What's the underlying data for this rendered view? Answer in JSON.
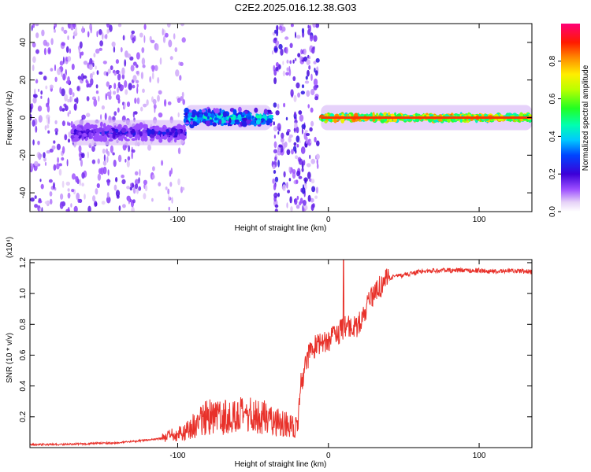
{
  "title": "C2E2.2025.016.12.38.G03",
  "colors": {
    "snr_line": "#e8312a",
    "axis": "#000000"
  },
  "chart_data": [
    {
      "type": "heatmap",
      "xlabel": "Height of straight line (km)",
      "ylabel": "Frequency (Hz)",
      "xlim": [
        -198,
        135
      ],
      "ylim": [
        -50,
        50
      ],
      "x_ticks": [
        -100,
        0,
        100
      ],
      "x_tick_labels": [
        "-100",
        "0",
        "100"
      ],
      "y_ticks": [
        -40,
        -20,
        0,
        20,
        40
      ],
      "y_tick_labels": [
        "-40",
        "-20",
        "0",
        "20",
        "40"
      ],
      "colorbar": {
        "label": "Normalized spectral amplitude",
        "range": [
          0,
          1
        ],
        "ticks": [
          0,
          0.2,
          0.4,
          0.6,
          0.8
        ],
        "tick_labels": [
          "0.0",
          "0.2",
          "0.4",
          "0.6",
          "0.8"
        ]
      },
      "bands": [
        {
          "x_start": -198,
          "x_end": -125,
          "kind": "noise",
          "center_hz": 0,
          "level": 0.15
        },
        {
          "x_start": -125,
          "x_end": -95,
          "kind": "noise",
          "center_hz": 0,
          "level": 0.08
        },
        {
          "x_start": -170,
          "x_end": -95,
          "kind": "signal",
          "center_hz": -8,
          "level": 0.25
        },
        {
          "x_start": -95,
          "x_end": -38,
          "kind": "signal",
          "center_hz": 0,
          "level": 0.45
        },
        {
          "x_start": -37,
          "x_end": -7,
          "kind": "noise",
          "center_hz": 0,
          "level": 0.2
        },
        {
          "x_start": -5,
          "x_end": 135,
          "kind": "signal",
          "center_hz": 0,
          "level": 0.75
        }
      ]
    },
    {
      "type": "line",
      "xlabel": "Height of straight line (km)",
      "ylabel": "SNR (10 * v/v)",
      "y_multiplier": "(x10⁴)",
      "xlim": [
        -198,
        135
      ],
      "ylim": [
        0,
        1.22
      ],
      "x_ticks": [
        -100,
        0,
        100
      ],
      "x_tick_labels": [
        "-100",
        "0",
        "100"
      ],
      "y_ticks": [
        0.2,
        0.4,
        0.6,
        0.8,
        1.0,
        1.2
      ],
      "y_tick_labels": [
        "0.2",
        "0.4",
        "0.6",
        "0.8",
        "1.0",
        "1.2"
      ],
      "series": [
        {
          "x": [
            -198,
            -180,
            -160,
            -150,
            -140,
            -130,
            -120,
            -110,
            -100,
            -95,
            -90,
            -85,
            -80,
            -75,
            -70,
            -65,
            -60,
            -55,
            -50,
            -45,
            -40,
            -35,
            -30,
            -25,
            -22,
            -20,
            -18,
            -15,
            -12,
            -10,
            -5,
            0,
            5,
            10,
            12,
            15,
            18,
            20,
            25,
            30,
            35,
            40,
            50,
            60,
            70,
            80,
            90,
            100,
            110,
            120,
            135
          ],
          "y": [
            0.02,
            0.02,
            0.025,
            0.03,
            0.03,
            0.04,
            0.05,
            0.06,
            0.09,
            0.1,
            0.14,
            0.17,
            0.2,
            0.19,
            0.2,
            0.2,
            0.21,
            0.2,
            0.21,
            0.2,
            0.2,
            0.17,
            0.16,
            0.14,
            0.12,
            0.16,
            0.35,
            0.55,
            0.62,
            0.65,
            0.68,
            0.7,
            0.72,
            0.78,
            0.8,
            0.78,
            0.78,
            0.8,
            0.9,
            1.0,
            1.05,
            1.1,
            1.12,
            1.14,
            1.15,
            1.15,
            1.15,
            1.15,
            1.14,
            1.15,
            1.14
          ]
        }
      ]
    }
  ]
}
